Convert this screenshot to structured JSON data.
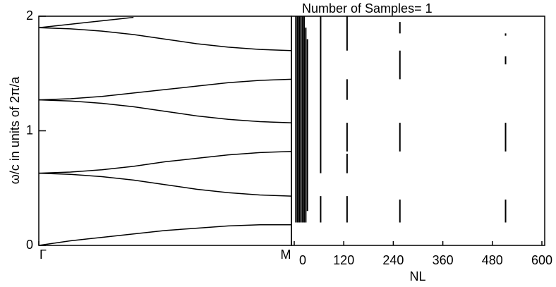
{
  "chart_data": [
    {
      "type": "line",
      "ylabel": "ω/c in units of 2π/a",
      "x": [
        0,
        0.125,
        0.25,
        0.375,
        0.5,
        0.625,
        0.75,
        0.875,
        1
      ],
      "xlim": [
        0,
        1
      ],
      "xticks": [
        {
          "value": 0,
          "label": "Γ"
        },
        {
          "value": 1,
          "label": "M"
        }
      ],
      "ylim": [
        0,
        2
      ],
      "yticks": [
        0,
        1,
        2
      ],
      "series": [
        {
          "color": "#000000",
          "values": [
            0,
            0.04,
            0.07,
            0.1,
            0.13,
            0.15,
            0.17,
            0.18,
            0.18
          ]
        },
        {
          "color": "#000000",
          "values": [
            0.63,
            0.62,
            0.6,
            0.57,
            0.53,
            0.49,
            0.46,
            0.44,
            0.43
          ]
        },
        {
          "color": "#000000",
          "values": [
            0.63,
            0.64,
            0.66,
            0.69,
            0.73,
            0.76,
            0.79,
            0.81,
            0.82
          ]
        },
        {
          "color": "#000000",
          "values": [
            1.27,
            1.26,
            1.24,
            1.21,
            1.17,
            1.13,
            1.1,
            1.08,
            1.07
          ]
        },
        {
          "color": "#000000",
          "values": [
            1.27,
            1.28,
            1.3,
            1.33,
            1.36,
            1.39,
            1.42,
            1.44,
            1.45
          ]
        },
        {
          "color": "#000000",
          "values": [
            1.9,
            1.89,
            1.87,
            1.84,
            1.8,
            1.76,
            1.73,
            1.71,
            1.7
          ]
        },
        {
          "color": "#000000",
          "values": [
            1.9,
            1.93,
            1.96,
            1.99,
            null,
            null,
            null,
            null,
            null
          ]
        }
      ]
    },
    {
      "type": "range",
      "title": "Number of Samples= 1",
      "xlabel": "NL",
      "xlim": [
        0,
        600
      ],
      "xticks": [
        0,
        120,
        240,
        360,
        480,
        600
      ],
      "ylim": [
        0,
        2
      ],
      "color": "#000000",
      "x": [
        4,
        8,
        12,
        16,
        20,
        24,
        28,
        32,
        64,
        64,
        128,
        128,
        128,
        128,
        128,
        256,
        256,
        256,
        256,
        512,
        512,
        512,
        512
      ],
      "ymin": [
        0.2,
        0.2,
        0.2,
        0.2,
        0.2,
        0.2,
        0.2,
        0.3,
        0.2,
        0.63,
        0.2,
        0.63,
        0.82,
        1.27,
        1.7,
        0.2,
        0.82,
        1.45,
        1.85,
        0.2,
        0.82,
        1.58,
        1.83
      ],
      "ymax": [
        2,
        2,
        2,
        2,
        2,
        2,
        1.9,
        1.8,
        0.43,
        2,
        0.43,
        0.8,
        1.07,
        1.45,
        2,
        0.4,
        1.07,
        1.7,
        1.95,
        0.4,
        1.07,
        1.65,
        1.85
      ]
    }
  ]
}
